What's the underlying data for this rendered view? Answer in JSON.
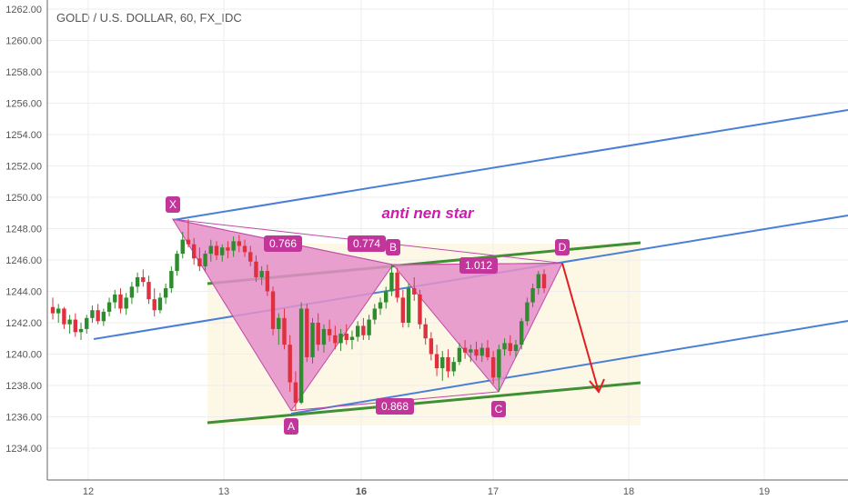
{
  "chart_data": {
    "type": "candlestick",
    "title": "GOLD / U.S. DOLLAR, 60, FX_IDC",
    "pattern_label": "anti nen star",
    "y_axis": {
      "ticks": [
        "1262.00",
        "1260.00",
        "1258.00",
        "1256.00",
        "1254.00",
        "1252.00",
        "1250.00",
        "1248.00",
        "1246.00",
        "1244.00",
        "1242.00",
        "1240.00",
        "1238.00",
        "1236.00",
        "1234.00"
      ],
      "min": 1233.0,
      "max": 1262.2,
      "grid": true
    },
    "x_axis": {
      "ticks": [
        "12",
        "13",
        "16",
        "17",
        "18",
        "19"
      ],
      "bold_ticks": [
        "16"
      ]
    },
    "points": [
      {
        "label": "X",
        "price": 1248.6
      },
      {
        "label": "A",
        "price": 1236.4
      },
      {
        "label": "B",
        "price": 1245.7
      },
      {
        "label": "C",
        "price": 1237.6
      },
      {
        "label": "D",
        "price": 1245.8
      }
    ],
    "ratios": [
      {
        "text": "0.766",
        "between": "XA-B"
      },
      {
        "text": "0.774",
        "between": "X-B"
      },
      {
        "text": "1.012",
        "between": "B-D"
      },
      {
        "text": "0.868",
        "between": "A-C"
      }
    ],
    "colors": {
      "up": "#2e8b2e",
      "down": "#e03040",
      "pattern_fill": "#e58fc9",
      "pattern_line": "#c04aa6",
      "label_bg": "#c2369c",
      "channel_blue": "#4a7fd6",
      "channel_green": "#3f8f35",
      "arrow": "#e02020",
      "box_fill": "#fdf7e6",
      "label_text": "#d019b0",
      "grid": "#eeeeee",
      "axis_text": "#555555"
    },
    "candles_ohlc": [
      [
        1243.0,
        1243.6,
        1242.2,
        1242.6
      ],
      [
        1242.6,
        1243.2,
        1242.0,
        1242.9
      ],
      [
        1242.9,
        1243.0,
        1241.6,
        1241.9
      ],
      [
        1241.9,
        1242.5,
        1241.3,
        1242.2
      ],
      [
        1242.2,
        1242.6,
        1241.1,
        1241.4
      ],
      [
        1241.4,
        1242.0,
        1240.9,
        1241.6
      ],
      [
        1241.6,
        1242.5,
        1241.3,
        1242.3
      ],
      [
        1242.3,
        1243.1,
        1242.0,
        1242.8
      ],
      [
        1242.8,
        1243.2,
        1241.9,
        1242.1
      ],
      [
        1242.1,
        1242.9,
        1241.8,
        1242.7
      ],
      [
        1242.7,
        1243.6,
        1242.4,
        1243.3
      ],
      [
        1243.3,
        1244.1,
        1242.9,
        1243.8
      ],
      [
        1243.8,
        1244.2,
        1242.6,
        1242.9
      ],
      [
        1242.9,
        1243.9,
        1242.5,
        1243.6
      ],
      [
        1243.6,
        1244.6,
        1243.2,
        1244.3
      ],
      [
        1244.3,
        1245.2,
        1243.9,
        1244.9
      ],
      [
        1244.9,
        1245.4,
        1244.3,
        1244.6
      ],
      [
        1244.6,
        1245.0,
        1243.2,
        1243.5
      ],
      [
        1243.5,
        1244.2,
        1242.4,
        1242.8
      ],
      [
        1242.8,
        1243.9,
        1242.6,
        1243.6
      ],
      [
        1243.6,
        1244.5,
        1243.2,
        1244.2
      ],
      [
        1244.2,
        1245.6,
        1243.9,
        1245.3
      ],
      [
        1245.3,
        1246.6,
        1245.0,
        1246.4
      ],
      [
        1246.4,
        1247.8,
        1246.1,
        1247.3
      ],
      [
        1247.3,
        1248.6,
        1246.8,
        1247.0
      ],
      [
        1247.0,
        1247.4,
        1245.7,
        1246.1
      ],
      [
        1246.1,
        1246.8,
        1245.3,
        1245.6
      ],
      [
        1245.6,
        1246.6,
        1245.3,
        1246.4
      ],
      [
        1246.4,
        1247.3,
        1245.9,
        1246.9
      ],
      [
        1246.9,
        1247.2,
        1246.0,
        1246.3
      ],
      [
        1246.3,
        1247.0,
        1245.9,
        1246.8
      ],
      [
        1246.8,
        1247.2,
        1246.1,
        1246.6
      ],
      [
        1246.6,
        1247.5,
        1246.2,
        1247.2
      ],
      [
        1247.2,
        1247.6,
        1246.5,
        1246.9
      ],
      [
        1246.9,
        1247.3,
        1246.2,
        1246.5
      ],
      [
        1246.5,
        1246.9,
        1245.6,
        1245.9
      ],
      [
        1245.9,
        1246.3,
        1244.6,
        1244.9
      ],
      [
        1244.9,
        1245.6,
        1244.4,
        1245.3
      ],
      [
        1245.3,
        1245.7,
        1243.7,
        1244.0
      ],
      [
        1244.0,
        1244.3,
        1241.2,
        1241.6
      ],
      [
        1241.6,
        1242.6,
        1240.6,
        1242.3
      ],
      [
        1242.3,
        1242.9,
        1240.3,
        1240.6
      ],
      [
        1240.6,
        1241.2,
        1237.6,
        1238.2
      ],
      [
        1238.2,
        1238.9,
        1236.4,
        1236.9
      ],
      [
        1236.9,
        1243.3,
        1236.8,
        1242.9
      ],
      [
        1242.9,
        1243.2,
        1239.5,
        1239.8
      ],
      [
        1239.8,
        1242.3,
        1239.4,
        1242.0
      ],
      [
        1242.0,
        1242.6,
        1240.2,
        1240.6
      ],
      [
        1240.6,
        1241.9,
        1240.1,
        1241.6
      ],
      [
        1241.6,
        1242.2,
        1240.8,
        1241.2
      ],
      [
        1241.2,
        1241.8,
        1240.3,
        1240.7
      ],
      [
        1240.7,
        1241.6,
        1240.2,
        1241.3
      ],
      [
        1241.3,
        1241.9,
        1240.6,
        1240.9
      ],
      [
        1240.9,
        1241.5,
        1240.3,
        1241.1
      ],
      [
        1241.1,
        1242.1,
        1240.8,
        1241.8
      ],
      [
        1241.8,
        1242.3,
        1240.9,
        1241.2
      ],
      [
        1241.2,
        1242.5,
        1240.9,
        1242.2
      ],
      [
        1242.2,
        1243.2,
        1241.9,
        1242.9
      ],
      [
        1242.9,
        1243.6,
        1242.5,
        1243.3
      ],
      [
        1243.3,
        1244.3,
        1242.9,
        1244.0
      ],
      [
        1244.0,
        1245.7,
        1243.7,
        1245.2
      ],
      [
        1245.2,
        1245.5,
        1243.3,
        1243.6
      ],
      [
        1243.6,
        1244.1,
        1241.7,
        1242.0
      ],
      [
        1242.0,
        1244.5,
        1241.7,
        1244.2
      ],
      [
        1244.2,
        1244.9,
        1243.4,
        1243.8
      ],
      [
        1243.8,
        1244.1,
        1241.6,
        1241.9
      ],
      [
        1241.9,
        1242.3,
        1240.6,
        1241.0
      ],
      [
        1241.0,
        1241.4,
        1239.6,
        1240.0
      ],
      [
        1240.0,
        1240.6,
        1238.6,
        1239.1
      ],
      [
        1239.1,
        1240.2,
        1238.3,
        1239.8
      ],
      [
        1239.8,
        1240.3,
        1238.5,
        1238.9
      ],
      [
        1238.9,
        1239.8,
        1238.6,
        1239.5
      ],
      [
        1239.5,
        1240.7,
        1239.3,
        1240.4
      ],
      [
        1240.4,
        1240.9,
        1239.7,
        1240.1
      ],
      [
        1240.1,
        1240.6,
        1239.5,
        1240.3
      ],
      [
        1240.3,
        1240.8,
        1239.6,
        1239.9
      ],
      [
        1239.9,
        1240.7,
        1239.5,
        1240.4
      ],
      [
        1240.4,
        1240.9,
        1239.6,
        1239.8
      ],
      [
        1239.8,
        1240.2,
        1238.1,
        1238.5
      ],
      [
        1238.5,
        1240.6,
        1237.6,
        1240.3
      ],
      [
        1240.3,
        1241.0,
        1239.9,
        1240.7
      ],
      [
        1240.7,
        1241.2,
        1239.9,
        1240.2
      ],
      [
        1240.2,
        1240.9,
        1239.8,
        1240.6
      ],
      [
        1240.6,
        1242.3,
        1240.3,
        1242.1
      ],
      [
        1242.1,
        1243.6,
        1241.8,
        1243.3
      ],
      [
        1243.3,
        1244.5,
        1243.0,
        1244.2
      ],
      [
        1244.2,
        1245.3,
        1243.8,
        1245.1
      ],
      [
        1245.1,
        1245.4,
        1243.9,
        1244.2
      ]
    ]
  }
}
